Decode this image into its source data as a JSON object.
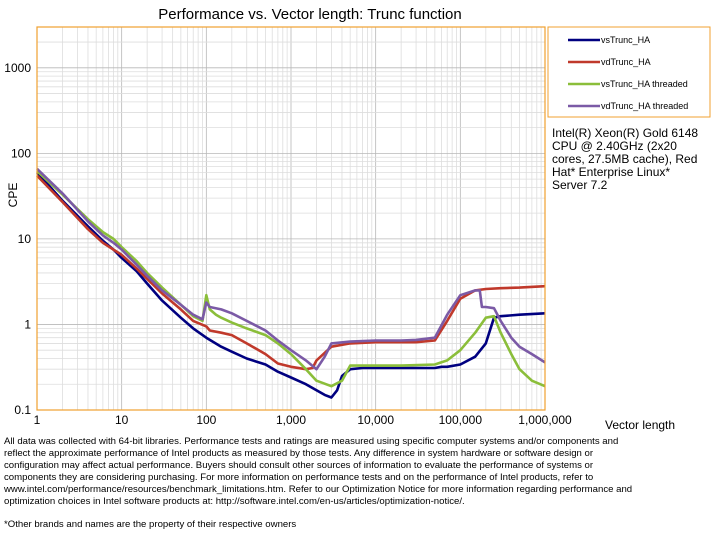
{
  "chart_data": {
    "type": "line",
    "title": "Performance vs. Vector length: Trunc function",
    "xlabel": "Vector length",
    "ylabel": "CPE",
    "xscale": "log",
    "yscale": "log",
    "xlim": [
      1,
      1000000
    ],
    "ylim": [
      0.1,
      3000
    ],
    "x_ticks": [
      1,
      10,
      100,
      1000,
      10000,
      100000,
      1000000
    ],
    "x_tick_labels": [
      "1",
      "10",
      "100",
      "1,000",
      "10,000",
      "100,000",
      "1,000,000"
    ],
    "y_ticks": [
      0.1,
      1,
      10,
      100,
      1000
    ],
    "y_tick_labels": [
      "0.1",
      "1",
      "10",
      "100",
      "1000"
    ],
    "grid": true,
    "legend_position": "top-right outside",
    "series": [
      {
        "name": "vsTrunc_HA",
        "color": "#000080",
        "x": [
          1,
          2,
          4,
          6,
          8,
          10,
          15,
          20,
          30,
          50,
          70,
          100,
          150,
          200,
          300,
          500,
          700,
          1000,
          1500,
          2000,
          2500,
          3000,
          3500,
          4000,
          5000,
          7000,
          10000,
          15000,
          20000,
          30000,
          40000,
          50000,
          60000,
          70000,
          100000,
          150000,
          200000,
          250000,
          300000,
          500000,
          1000000
        ],
        "y": [
          60,
          28,
          14,
          9.5,
          7.5,
          6.0,
          4.2,
          3.0,
          1.9,
          1.2,
          0.9,
          0.7,
          0.55,
          0.48,
          0.4,
          0.34,
          0.28,
          0.24,
          0.2,
          0.17,
          0.15,
          0.14,
          0.17,
          0.25,
          0.3,
          0.31,
          0.31,
          0.31,
          0.31,
          0.31,
          0.31,
          0.31,
          0.32,
          0.32,
          0.34,
          0.42,
          0.6,
          1.2,
          1.25,
          1.3,
          1.35
        ]
      },
      {
        "name": "vdTrunc_HA",
        "color": "#c0392b",
        "x": [
          1,
          2,
          4,
          6,
          8,
          10,
          15,
          20,
          30,
          50,
          70,
          100,
          110,
          150,
          200,
          300,
          500,
          700,
          1000,
          1500,
          1800,
          2000,
          3000,
          5000,
          10000,
          20000,
          30000,
          50000,
          70000,
          100000,
          150000,
          200000,
          300000,
          500000,
          1000000
        ],
        "y": [
          55,
          27,
          13,
          9.0,
          7.5,
          6.5,
          4.5,
          3.4,
          2.3,
          1.5,
          1.1,
          0.95,
          0.85,
          0.8,
          0.75,
          0.6,
          0.45,
          0.35,
          0.32,
          0.3,
          0.31,
          0.38,
          0.55,
          0.6,
          0.62,
          0.62,
          0.62,
          0.65,
          1.1,
          2.0,
          2.5,
          2.6,
          2.65,
          2.7,
          2.8
        ]
      },
      {
        "name": "vsTrunc_HA threaded",
        "color": "#8bbe3a",
        "x": [
          1,
          2,
          4,
          6,
          8,
          10,
          15,
          20,
          30,
          50,
          70,
          90,
          100,
          110,
          130,
          150,
          200,
          300,
          500,
          700,
          1000,
          1500,
          2000,
          3000,
          4000,
          5000,
          7000,
          10000,
          20000,
          50000,
          70000,
          100000,
          150000,
          200000,
          250000,
          300000,
          400000,
          500000,
          700000,
          1000000
        ],
        "y": [
          62,
          33,
          17,
          12,
          10,
          8.0,
          5.5,
          4.0,
          2.7,
          1.7,
          1.25,
          1.1,
          2.2,
          1.5,
          1.3,
          1.2,
          1.05,
          0.9,
          0.75,
          0.6,
          0.45,
          0.3,
          0.22,
          0.19,
          0.22,
          0.33,
          0.33,
          0.33,
          0.33,
          0.34,
          0.38,
          0.5,
          0.8,
          1.2,
          1.25,
          0.8,
          0.45,
          0.3,
          0.22,
          0.19
        ]
      },
      {
        "name": "vdTrunc_HA threaded",
        "color": "#7b5aa6",
        "x": [
          1,
          2,
          4,
          6,
          8,
          10,
          15,
          20,
          30,
          50,
          70,
          90,
          100,
          110,
          150,
          200,
          300,
          500,
          700,
          1000,
          1500,
          2000,
          2500,
          3000,
          5000,
          10000,
          20000,
          30000,
          50000,
          70000,
          100000,
          150000,
          170000,
          180000,
          200000,
          250000,
          300000,
          400000,
          500000,
          700000,
          1000000
        ],
        "y": [
          66,
          34,
          16,
          11,
          9.0,
          7.5,
          5.0,
          3.7,
          2.5,
          1.7,
          1.3,
          1.15,
          1.8,
          1.6,
          1.5,
          1.35,
          1.1,
          0.85,
          0.65,
          0.5,
          0.38,
          0.3,
          0.42,
          0.6,
          0.63,
          0.65,
          0.65,
          0.66,
          0.7,
          1.3,
          2.2,
          2.5,
          2.5,
          1.6,
          1.6,
          1.55,
          1.1,
          0.7,
          0.55,
          0.45,
          0.36
        ]
      }
    ]
  },
  "info_box": {
    "lines": [
      "Intel(R) Xeon(R) Gold 6148",
      "CPU @ 2.40GHz (2x20",
      "cores, 27.5MB cache), Red",
      "Hat* Enterprise Linux*",
      "Server 7.2"
    ]
  },
  "disclaimer": {
    "lines": [
      "All data was collected with 64-bit libraries. Performance tests and ratings are measured using specific computer systems and/or components and",
      "reflect the approximate performance of Intel products as measured by those tests. Any difference in system hardware or software design or",
      "configuration may affect actual performance. Buyers should consult other sources of information to evaluate the performance of systems or",
      "components they are considering purchasing. For more information on performance tests and on the performance of Intel products, refer to",
      "www.intel.com/performance/resources/benchmark_limitations.htm. Refer to our Optimization Notice for more information regarding performance and",
      "optimization choices in Intel software products at: http://software.intel.com/en-us/articles/optimization-notice/."
    ],
    "footnote": "*Other brands and names are the property of their respective owners"
  }
}
